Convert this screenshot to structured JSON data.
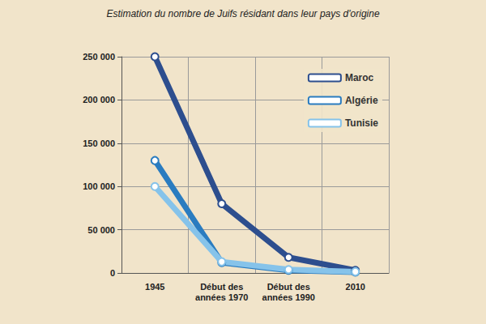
{
  "chart_data": {
    "type": "line",
    "title": "Estimation du nombre de Juifs résidant dans leur pays d'origine",
    "categories": [
      "1945",
      "Début des années 1970",
      "Début des années 1990",
      "2010"
    ],
    "series": [
      {
        "name": "Maroc",
        "color": "#2d4e8e",
        "values": [
          250000,
          80000,
          18000,
          3000
        ],
        "marker": "circle"
      },
      {
        "name": "Algérie",
        "color": "#2a7cc0",
        "values": [
          130000,
          12000,
          3000,
          1000
        ],
        "marker": "circle"
      },
      {
        "name": "Tunisie",
        "color": "#86c3ea",
        "values": [
          100000,
          13000,
          4000,
          1500
        ],
        "marker": "circle"
      }
    ],
    "ylim": [
      0,
      250000
    ],
    "yticks": [
      0,
      {
        "value": 50000,
        "label": "50 000"
      },
      {
        "value": 100000,
        "label": "100 000"
      },
      {
        "value": 150000,
        "label": "150 000"
      },
      {
        "value": 200000,
        "label": "200 000"
      },
      {
        "value": 250000,
        "label": "250 000"
      }
    ],
    "grid": true,
    "legend": "top-right"
  }
}
